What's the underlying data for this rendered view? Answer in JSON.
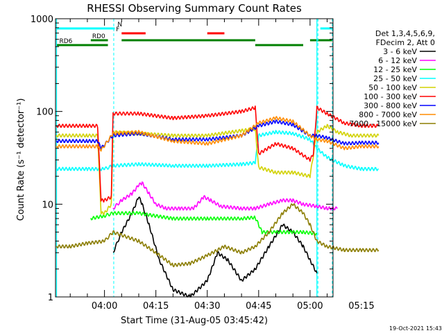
{
  "chart_data": {
    "type": "line",
    "title": "RHESSI Observing Summary Count Rates",
    "xlabel": "Start Time (31-Aug-05 03:45:42)",
    "ylabel": "Count Rate (s⁻¹ detector⁻¹)",
    "y_scale": "log",
    "ylim": [
      1,
      1000
    ],
    "xlim_minutes": [
      -14.3,
      66.7
    ],
    "x_ticks": [
      "04:00",
      "04:15",
      "04:30",
      "04:45",
      "05:00",
      "05:15"
    ],
    "y_ticks": [
      "1",
      "10",
      "100",
      "1000"
    ],
    "timestamp": "19-Oct-2021 15:43",
    "legend": {
      "placement": "right",
      "header": [
        "Det 1,3,4,5,6,9,",
        "FDecim 2, Att 0"
      ],
      "entries": [
        {
          "label": "3 - 6 keV",
          "color": "#000000"
        },
        {
          "label": "6 - 12 keV",
          "color": "#ff00ff"
        },
        {
          "label": "12 - 25 keV",
          "color": "#00ff00"
        },
        {
          "label": "25 - 50 keV",
          "color": "#00ffff"
        },
        {
          "label": "50 - 100 keV",
          "color": "#d2d200"
        },
        {
          "label": "100 - 300 keV",
          "color": "#ff0000"
        },
        {
          "label": "300 - 800 keV",
          "color": "#0000ff"
        },
        {
          "label": "800 - 7000 keV",
          "color": "#ff8c00"
        },
        {
          "label": "7000 - 15000 keV",
          "color": "#8b7d00"
        }
      ]
    },
    "flags": [
      {
        "label": "N",
        "color": "#00ffff",
        "segments": [
          [
            -14,
            3
          ],
          [
            63,
            66.5
          ]
        ]
      },
      {
        "label": "F",
        "color": "#ff0000",
        "segments": [
          [
            5,
            12
          ],
          [
            30,
            35
          ]
        ]
      },
      {
        "label": "RD0",
        "color": "#008000",
        "segments": [
          [
            -4,
            1
          ],
          [
            5,
            44
          ],
          [
            60,
            66.5
          ]
        ]
      },
      {
        "label": "RD6",
        "color": "#008000",
        "segments": [
          [
            -14,
            1
          ],
          [
            44,
            58
          ]
        ]
      }
    ],
    "vlines_solid": [
      -14,
      62
    ],
    "vlines_dashed": [
      2.7,
      62.3,
      66.5
    ],
    "series": [
      {
        "name": "3 - 6 keV",
        "color": "#000000",
        "points": [
          [
            2.5,
            3
          ],
          [
            5,
            5
          ],
          [
            8,
            8
          ],
          [
            10,
            12
          ],
          [
            11,
            10
          ],
          [
            13,
            6
          ],
          [
            16,
            2.5
          ],
          [
            20,
            1.2
          ],
          [
            25,
            1
          ],
          [
            30,
            1.5
          ],
          [
            33,
            3
          ],
          [
            36,
            2.5
          ],
          [
            40,
            1.5
          ],
          [
            44,
            2
          ],
          [
            48,
            3.5
          ],
          [
            52,
            6
          ],
          [
            55,
            5
          ],
          [
            58,
            3.5
          ],
          [
            60,
            2.5
          ],
          [
            62,
            1.8
          ]
        ]
      },
      {
        "name": "6 - 12 keV",
        "color": "#ff00ff",
        "points": [
          [
            2.5,
            9
          ],
          [
            5,
            11
          ],
          [
            8,
            13
          ],
          [
            10,
            16
          ],
          [
            11,
            17
          ],
          [
            13,
            13
          ],
          [
            15,
            10
          ],
          [
            18,
            9
          ],
          [
            22,
            9
          ],
          [
            26,
            9
          ],
          [
            29,
            12
          ],
          [
            31,
            11
          ],
          [
            34,
            9.5
          ],
          [
            40,
            9
          ],
          [
            44,
            9
          ],
          [
            48,
            10
          ],
          [
            52,
            11
          ],
          [
            55,
            11
          ],
          [
            58,
            10
          ],
          [
            62,
            9.5
          ],
          [
            65,
            9
          ],
          [
            68,
            9
          ]
        ]
      },
      {
        "name": "12 - 25 keV",
        "color": "#00ff00",
        "points": [
          [
            -4,
            7
          ],
          [
            0,
            7.5
          ],
          [
            2.5,
            8
          ],
          [
            10,
            8
          ],
          [
            20,
            7
          ],
          [
            30,
            7
          ],
          [
            40,
            7
          ],
          [
            44,
            7.2
          ],
          [
            46,
            5
          ],
          [
            50,
            5
          ],
          [
            55,
            5
          ],
          [
            58,
            5
          ],
          [
            62,
            4.8
          ]
        ]
      },
      {
        "name": "25 - 50 keV",
        "color": "#00ffff",
        "points": [
          [
            -14,
            24
          ],
          [
            -10,
            24
          ],
          [
            -5,
            24
          ],
          [
            0,
            24
          ],
          [
            2.5,
            26
          ],
          [
            10,
            27
          ],
          [
            20,
            26
          ],
          [
            30,
            26
          ],
          [
            40,
            27
          ],
          [
            44,
            28
          ],
          [
            45,
            55
          ],
          [
            50,
            60
          ],
          [
            55,
            58
          ],
          [
            60,
            50
          ],
          [
            62,
            40
          ],
          [
            65,
            32
          ],
          [
            70,
            26
          ],
          [
            75,
            24
          ],
          [
            80,
            24
          ]
        ]
      },
      {
        "name": "50 - 100 keV",
        "color": "#d2d200",
        "points": [
          [
            -14,
            55
          ],
          [
            -5,
            55
          ],
          [
            -2,
            55
          ],
          [
            -1,
            8
          ],
          [
            0,
            8
          ],
          [
            2,
            10
          ],
          [
            2.5,
            60
          ],
          [
            10,
            58
          ],
          [
            20,
            55
          ],
          [
            30,
            55
          ],
          [
            40,
            62
          ],
          [
            44,
            65
          ],
          [
            45,
            25
          ],
          [
            50,
            22
          ],
          [
            55,
            22
          ],
          [
            60,
            20
          ],
          [
            62,
            60
          ],
          [
            65,
            70
          ],
          [
            68,
            60
          ],
          [
            72,
            55
          ],
          [
            80,
            55
          ]
        ]
      },
      {
        "name": "100 - 300 keV",
        "color": "#ff0000",
        "points": [
          [
            -14,
            70
          ],
          [
            -5,
            70
          ],
          [
            -2,
            70
          ],
          [
            -1,
            11
          ],
          [
            0,
            11
          ],
          [
            2,
            12
          ],
          [
            2.5,
            95
          ],
          [
            10,
            95
          ],
          [
            20,
            85
          ],
          [
            30,
            90
          ],
          [
            40,
            100
          ],
          [
            44,
            110
          ],
          [
            45,
            35
          ],
          [
            50,
            45
          ],
          [
            55,
            40
          ],
          [
            60,
            30
          ],
          [
            61,
            35
          ],
          [
            62,
            110
          ],
          [
            65,
            95
          ],
          [
            70,
            75
          ],
          [
            75,
            70
          ],
          [
            80,
            70
          ]
        ]
      },
      {
        "name": "300 - 800 keV",
        "color": "#0000ff",
        "points": [
          [
            -14,
            48
          ],
          [
            -5,
            48
          ],
          [
            -2,
            48
          ],
          [
            -1,
            40
          ],
          [
            2.5,
            55
          ],
          [
            10,
            58
          ],
          [
            20,
            50
          ],
          [
            30,
            50
          ],
          [
            40,
            55
          ],
          [
            45,
            70
          ],
          [
            50,
            78
          ],
          [
            55,
            72
          ],
          [
            60,
            55
          ],
          [
            62,
            55
          ],
          [
            65,
            52
          ],
          [
            70,
            45
          ],
          [
            75,
            46
          ],
          [
            80,
            46
          ]
        ]
      },
      {
        "name": "800 - 7000 keV",
        "color": "#ff8c00",
        "points": [
          [
            -14,
            42
          ],
          [
            -5,
            42
          ],
          [
            -2,
            42
          ],
          [
            -1,
            38
          ],
          [
            2.5,
            58
          ],
          [
            10,
            60
          ],
          [
            20,
            48
          ],
          [
            30,
            45
          ],
          [
            40,
            55
          ],
          [
            45,
            75
          ],
          [
            50,
            85
          ],
          [
            55,
            78
          ],
          [
            60,
            55
          ],
          [
            62,
            50
          ],
          [
            65,
            48
          ],
          [
            70,
            40
          ],
          [
            75,
            42
          ],
          [
            80,
            42
          ]
        ]
      },
      {
        "name": "7000 - 15000 keV",
        "color": "#8b7d00",
        "points": [
          [
            -14,
            3.5
          ],
          [
            -10,
            3.5
          ],
          [
            -5,
            3.8
          ],
          [
            0,
            4
          ],
          [
            2.5,
            5
          ],
          [
            10,
            4
          ],
          [
            15,
            3
          ],
          [
            20,
            2.2
          ],
          [
            25,
            2.3
          ],
          [
            30,
            2.8
          ],
          [
            35,
            3.5
          ],
          [
            40,
            3
          ],
          [
            44,
            3.5
          ],
          [
            48,
            5
          ],
          [
            52,
            8
          ],
          [
            55,
            10
          ],
          [
            58,
            8
          ],
          [
            60,
            6
          ],
          [
            62,
            4
          ],
          [
            65,
            3.5
          ],
          [
            70,
            3.2
          ],
          [
            75,
            3.2
          ],
          [
            80,
            3.2
          ]
        ]
      }
    ]
  }
}
